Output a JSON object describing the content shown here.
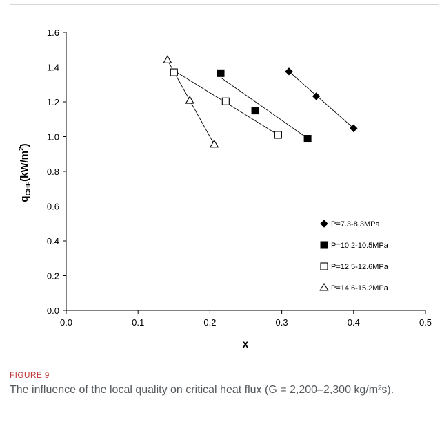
{
  "chart_data": {
    "type": "scatter",
    "xlabel": "x",
    "ylabel": "q",
    "ylabel_sub": "CHF",
    "ylabel_unit": "(kW/m",
    "ylabel_sup": "2",
    "ylabel_close": ")",
    "xlim": [
      0.0,
      0.5
    ],
    "ylim": [
      0.0,
      1.6
    ],
    "xticks": [
      "0.0",
      "0.1",
      "0.2",
      "0.3",
      "0.4",
      "0.5"
    ],
    "yticks": [
      "0.0",
      "0.2",
      "0.4",
      "0.6",
      "0.8",
      "1.0",
      "1.2",
      "1.4",
      "1.6"
    ],
    "grid": false,
    "legend_position": "right",
    "series": [
      {
        "name": "P=7.3-8.3MPa",
        "marker": "diamond-filled",
        "x": [
          0.31,
          0.348,
          0.4
        ],
        "y": [
          1.375,
          1.232,
          1.048
        ],
        "fit": [
          [
            0.31,
            1.375
          ],
          [
            0.4,
            1.048
          ]
        ]
      },
      {
        "name": "P=10.2-10.5MPa",
        "marker": "square-filled",
        "x": [
          0.215,
          0.263,
          0.336
        ],
        "y": [
          1.365,
          1.15,
          0.988
        ],
        "fit": [
          [
            0.215,
            1.34
          ],
          [
            0.336,
            0.99
          ]
        ]
      },
      {
        "name": "P=12.5-12.6MPa",
        "marker": "square-open",
        "x": [
          0.15,
          0.222,
          0.295
        ],
        "y": [
          1.37,
          1.203,
          1.01
        ],
        "fit": [
          [
            0.15,
            1.38
          ],
          [
            0.295,
            1.01
          ]
        ]
      },
      {
        "name": "P=14.6-15.2MPa",
        "marker": "triangle-open",
        "x": [
          0.141,
          0.172,
          0.206
        ],
        "y": [
          1.44,
          1.207,
          0.955
        ],
        "fit": [
          [
            0.141,
            1.44
          ],
          [
            0.206,
            0.955
          ]
        ]
      }
    ]
  },
  "caption": {
    "label": "FIGURE 9",
    "text": "The influence of the local quality on critical heat flux (G = 2,200–2,300 kg/m²s)."
  }
}
